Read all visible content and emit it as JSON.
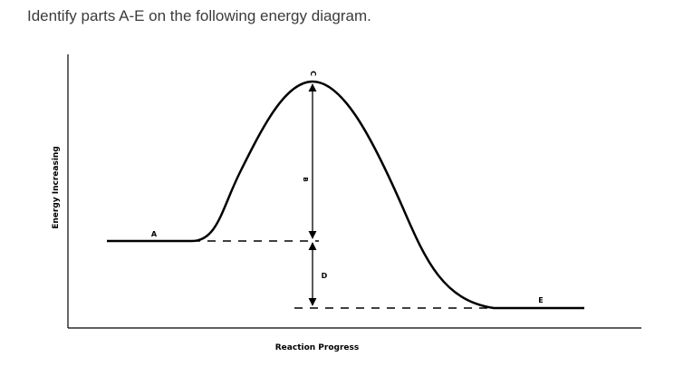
{
  "question": {
    "text": "Identify parts A-E on the following energy diagram."
  },
  "diagram": {
    "y_axis_label": "Energy Increasing",
    "x_axis_label": "Reaction Progress",
    "labels": {
      "a": "A",
      "b": "B",
      "c": "C",
      "d": "D",
      "e": "E"
    }
  }
}
